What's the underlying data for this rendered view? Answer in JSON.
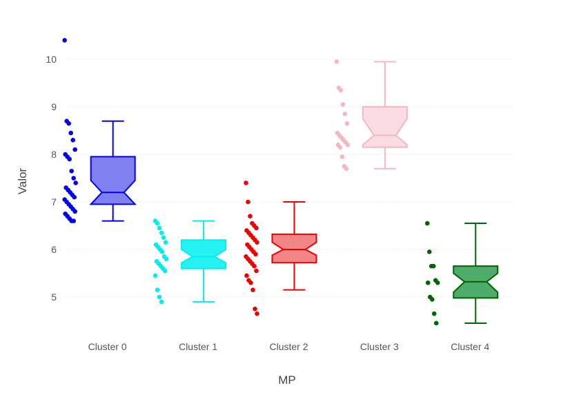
{
  "chart_data": {
    "type": "box",
    "title": "",
    "xlabel": "MP",
    "ylabel": "Valor",
    "ylim": [
      4.2,
      10.8
    ],
    "yticks": [
      5,
      6,
      7,
      8,
      9,
      10
    ],
    "ytick_labels": [
      "5",
      "6",
      "7",
      "8",
      "9",
      "10"
    ],
    "grid": true,
    "notched": true,
    "show_points": "all",
    "categories": [
      "Cluster 0",
      "Cluster 1",
      "Cluster 2",
      "Cluster 3",
      "Cluster 4"
    ],
    "series": [
      {
        "name": "Cluster 0",
        "color": "#0000ee",
        "fill": "#6a6aee",
        "box": {
          "lowerfence": 6.6,
          "q1": 6.95,
          "median": 7.2,
          "q3": 7.95,
          "upperfence": 8.7,
          "notch_low": 6.95,
          "notch_high": 7.45
        },
        "points": [
          10.4,
          8.7,
          8.65,
          8.45,
          8.3,
          8.1,
          8.0,
          7.95,
          7.9,
          7.65,
          7.5,
          7.4,
          7.3,
          7.25,
          7.2,
          7.15,
          7.1,
          7.05,
          7.0,
          6.95,
          6.9,
          6.85,
          6.8,
          6.75,
          6.7,
          6.65,
          6.6,
          6.6
        ]
      },
      {
        "name": "Cluster 1",
        "color": "#00eeee",
        "fill": "#00f0f0",
        "box": {
          "lowerfence": 4.9,
          "q1": 5.6,
          "median": 5.85,
          "q3": 6.2,
          "upperfence": 6.6,
          "notch_low": 5.72,
          "notch_high": 6.0
        },
        "points": [
          6.6,
          6.55,
          6.45,
          6.35,
          6.25,
          6.15,
          6.1,
          6.05,
          6.0,
          5.95,
          5.85,
          5.8,
          5.75,
          5.7,
          5.65,
          5.6,
          5.55,
          5.45,
          5.15,
          5.0,
          4.9
        ]
      },
      {
        "name": "Cluster 2",
        "color": "#ee0000",
        "fill": "#f07070",
        "box": {
          "lowerfence": 5.15,
          "q1": 5.72,
          "median": 6.0,
          "q3": 6.32,
          "upperfence": 7.0,
          "notch_low": 5.88,
          "notch_high": 6.15
        },
        "points": [
          7.4,
          7.0,
          6.7,
          6.55,
          6.5,
          6.45,
          6.4,
          6.35,
          6.3,
          6.25,
          6.2,
          6.15,
          6.1,
          6.05,
          6.0,
          5.95,
          5.9,
          5.85,
          5.8,
          5.75,
          5.7,
          5.65,
          5.55,
          5.45,
          5.35,
          5.3,
          5.15,
          4.75,
          4.65
        ]
      },
      {
        "name": "Cluster 3",
        "color": "#f4b8c4",
        "fill": "#f9d6dd",
        "box": {
          "lowerfence": 7.7,
          "q1": 8.15,
          "median": 8.4,
          "q3": 9.0,
          "upperfence": 9.95,
          "notch_low": 8.2,
          "notch_high": 8.75
        },
        "points": [
          9.95,
          9.4,
          9.35,
          9.05,
          8.85,
          8.65,
          8.45,
          8.4,
          8.35,
          8.3,
          8.25,
          8.2,
          8.2,
          8.15,
          7.95,
          7.75,
          7.7
        ]
      },
      {
        "name": "Cluster 4",
        "color": "#006400",
        "fill": "#2e9e4f",
        "box": {
          "lowerfence": 4.45,
          "q1": 4.98,
          "median": 5.32,
          "q3": 5.65,
          "upperfence": 6.55,
          "notch_low": 5.1,
          "notch_high": 5.5
        },
        "points": [
          6.55,
          5.95,
          5.65,
          5.65,
          5.35,
          5.3,
          5.3,
          5.0,
          4.95,
          4.65,
          4.45
        ]
      }
    ]
  }
}
